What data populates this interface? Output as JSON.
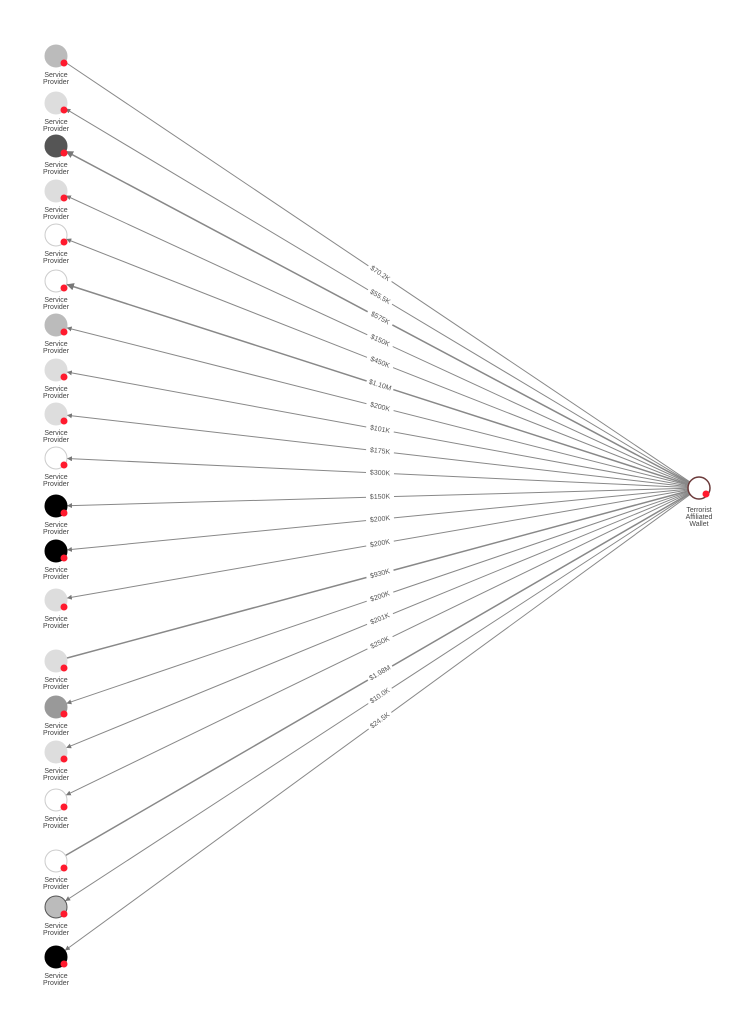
{
  "target": {
    "label_lines": [
      "Terrorist",
      "Affiliated",
      "Wallet"
    ],
    "fill": "#ffffff",
    "stroke": "#6b3a3a",
    "badge_color": "#ff1a2e"
  },
  "nodes": [
    {
      "label": "Service Provider",
      "fill": "#bbbbbb",
      "amount": "$70.2K",
      "dir": "out"
    },
    {
      "label": "Service Provider",
      "fill": "#dddddd",
      "amount": "$55.5K",
      "dir": "in"
    },
    {
      "label": "Service Provider",
      "fill": "#555555",
      "amount": "$575K",
      "dir": "in"
    },
    {
      "label": "Service Provider",
      "fill": "#dddddd",
      "amount": "$150K",
      "dir": "in"
    },
    {
      "label": "Service Provider",
      "fill": "#ffffff",
      "amount": "$450K",
      "dir": "in"
    },
    {
      "label": "Service Provider",
      "fill": "#ffffff",
      "amount": "$1.10M",
      "dir": "in"
    },
    {
      "label": "Service Provider",
      "fill": "#bbbbbb",
      "amount": "$200K",
      "dir": "in"
    },
    {
      "label": "Service Provider",
      "fill": "#dddddd",
      "amount": "$101K",
      "dir": "in"
    },
    {
      "label": "Service Provider",
      "fill": "#dddddd",
      "amount": "$175K",
      "dir": "in"
    },
    {
      "label": "Service Provider",
      "fill": "#ffffff",
      "amount": "$300K",
      "dir": "in"
    },
    {
      "label": "Service Provider",
      "fill": "#000000",
      "amount": "$150K",
      "dir": "in"
    },
    {
      "label": "Service Provider",
      "fill": "#000000",
      "amount": "$200K",
      "dir": "in"
    },
    {
      "label": "Service Provider",
      "fill": "#dddddd",
      "amount": "$200K",
      "dir": "in"
    },
    {
      "label": "Service Provider",
      "fill": "#dddddd",
      "amount": "$930K",
      "dir": "out"
    },
    {
      "label": "Service Provider",
      "fill": "#999999",
      "amount": "$200K",
      "dir": "in"
    },
    {
      "label": "Service Provider",
      "fill": "#dddddd",
      "amount": "$201K",
      "dir": "in"
    },
    {
      "label": "Service Provider",
      "fill": "#ffffff",
      "amount": "$250K",
      "dir": "in"
    },
    {
      "label": "Service Provider",
      "fill": "#ffffff",
      "amount": "$1.98M",
      "dir": "out"
    },
    {
      "label": "Service Provider",
      "fill": "#bbbbbb",
      "amount": "$10.0K",
      "dir": "in"
    },
    {
      "label": "Service Provider",
      "fill": "#000000",
      "amount": "$24.5K",
      "dir": "in"
    }
  ]
}
